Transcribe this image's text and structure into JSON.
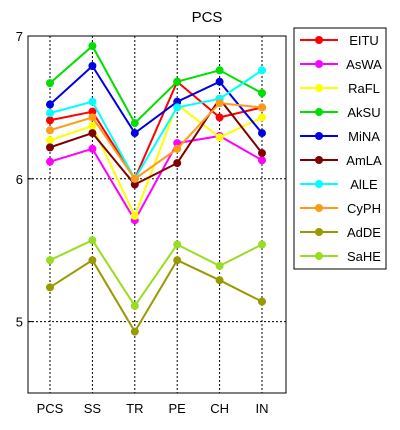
{
  "chart_data": {
    "type": "line",
    "title": "PCS",
    "xlabel": "",
    "ylabel": "",
    "categories": [
      "PCS",
      "SS",
      "TR",
      "PE",
      "CH",
      "IN"
    ],
    "ylim": [
      4.5,
      7.0
    ],
    "yticks": [
      5,
      6,
      7
    ],
    "grid": true,
    "legend_position": "right",
    "series": [
      {
        "name": "EITU",
        "color": "#ff0000",
        "values": [
          6.41,
          6.47,
          6.0,
          6.68,
          6.43,
          6.5
        ]
      },
      {
        "name": "AsWA",
        "color": "#ff00ff",
        "values": [
          6.12,
          6.21,
          5.71,
          6.25,
          6.3,
          6.13
        ]
      },
      {
        "name": "RaFL",
        "color": "#ffff00",
        "values": [
          6.27,
          6.37,
          5.74,
          6.52,
          6.29,
          6.43
        ]
      },
      {
        "name": "AkSU",
        "color": "#00e000",
        "values": [
          6.67,
          6.93,
          6.39,
          6.68,
          6.76,
          6.6
        ]
      },
      {
        "name": "MiNA",
        "color": "#0000e0",
        "values": [
          6.52,
          6.79,
          6.32,
          6.54,
          6.68,
          6.32
        ]
      },
      {
        "name": "AmLA",
        "color": "#800000",
        "values": [
          6.22,
          6.32,
          5.96,
          6.11,
          6.56,
          6.18
        ]
      },
      {
        "name": "AlLE",
        "color": "#00ffff",
        "values": [
          6.46,
          6.54,
          6.0,
          6.5,
          6.56,
          6.76
        ]
      },
      {
        "name": "CyPH",
        "color": "#ff9a1a",
        "values": [
          6.34,
          6.43,
          6.0,
          6.21,
          6.53,
          6.5
        ]
      },
      {
        "name": "AdDE",
        "color": "#999900",
        "values": [
          5.24,
          5.43,
          4.93,
          5.43,
          5.29,
          5.14
        ]
      },
      {
        "name": "SaHE",
        "color": "#99dd22",
        "values": [
          5.43,
          5.57,
          5.11,
          5.54,
          5.39,
          5.54
        ]
      }
    ]
  }
}
